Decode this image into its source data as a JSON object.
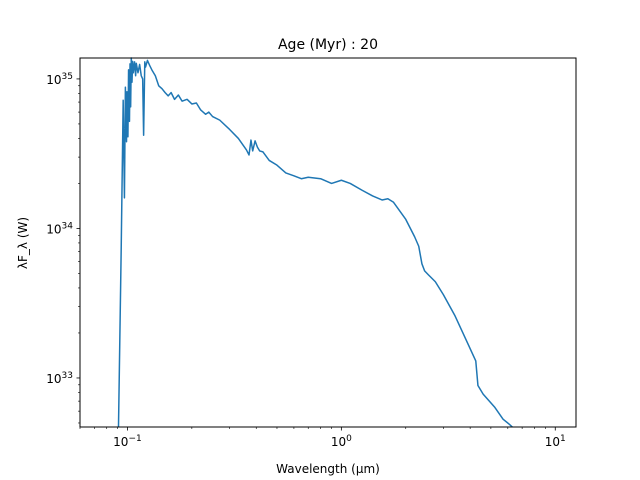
{
  "chart_data": {
    "type": "line",
    "title": "Age (Myr) : 20",
    "xlabel": "Wavelength (μm)",
    "ylabel": "λF_λ (W)",
    "xscale": "log",
    "yscale": "log",
    "xlim": [
      0.06,
      12.5
    ],
    "ylim": [
      4.7e+32,
      1.38e+35
    ],
    "grid": false,
    "x_ticks": [
      0.1,
      1,
      10
    ],
    "y_ticks": [
      1e+33,
      1e+34,
      1e+35
    ],
    "series_color": "#1f77b4",
    "series": [
      {
        "x": [
          0.0908,
          0.0935,
          0.0955,
          0.0968,
          0.0978,
          0.099,
          0.0995,
          0.1005,
          0.1012,
          0.1022,
          0.1028,
          0.1035,
          0.1042,
          0.105,
          0.1058,
          0.1065,
          0.108,
          0.1092,
          0.11,
          0.112,
          0.114,
          0.116,
          0.1178,
          0.119,
          0.1205,
          0.1215,
          0.124,
          0.127,
          0.13,
          0.135,
          0.14,
          0.145,
          0.15,
          0.155,
          0.16,
          0.166,
          0.173,
          0.18,
          0.19,
          0.2,
          0.21,
          0.22,
          0.232,
          0.24,
          0.25,
          0.27,
          0.3,
          0.33,
          0.36,
          0.37,
          0.378,
          0.385,
          0.395,
          0.405,
          0.415,
          0.43,
          0.46,
          0.5,
          0.55,
          0.6,
          0.65,
          0.7,
          0.8,
          0.9,
          1.0,
          1.1,
          1.25,
          1.4,
          1.55,
          1.65,
          1.75,
          2.0,
          2.2,
          2.3,
          2.38,
          2.45,
          2.55,
          2.75,
          3.0,
          3.4,
          3.9,
          4.25,
          4.35,
          4.6,
          5.2,
          5.7,
          6.1,
          6.3
        ],
        "y": [
          4.7e+32,
          7.4e+33,
          7.2e+34,
          1.6e+34,
          8.8e+34,
          3.8e+34,
          8.2e+34,
          4.1e+34,
          1.15e+35,
          5.2e+34,
          1.26e+35,
          6.5e+34,
          1.38e+35,
          9.5e+34,
          1.31e+35,
          1.1e+35,
          1.3e+35,
          1.05e+35,
          1.27e+35,
          1.1e+35,
          1.25e+35,
          1.05e+35,
          1e+35,
          4.2e+34,
          1.3e+35,
          1.2e+35,
          1.33e+35,
          1.23e+35,
          1.15e+35,
          1.05e+35,
          9e+34,
          8.6e+34,
          8.1e+34,
          7.7e+34,
          8.1e+34,
          7.3e+34,
          7.8e+34,
          7.1e+34,
          7.3e+34,
          6.8e+34,
          6.9e+34,
          6.2e+34,
          5.8e+34,
          6e+34,
          5.6e+34,
          5.3e+34,
          4.6e+34,
          4e+34,
          3.35e+34,
          3.1e+34,
          3.9e+34,
          3.3e+34,
          3.85e+34,
          3.5e+34,
          3.3e+34,
          3.25e+34,
          2.85e+34,
          2.65e+34,
          2.35e+34,
          2.25e+34,
          2.15e+34,
          2.2e+34,
          2.15e+34,
          2e+34,
          2.1e+34,
          2e+34,
          1.8e+34,
          1.65e+34,
          1.55e+34,
          1.58e+34,
          1.5e+34,
          1.15e+34,
          8.8e+33,
          7.6e+33,
          5.8e+33,
          5.2e+33,
          4.9e+33,
          4.4e+33,
          3.6e+33,
          2.6e+33,
          1.7e+33,
          1.3e+33,
          8.9e+32,
          7.8e+32,
          6.4e+32,
          5.3e+32,
          4.9e+32,
          4.7e+32
        ]
      }
    ]
  }
}
